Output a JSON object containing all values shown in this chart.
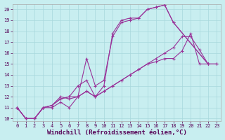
{
  "background_color": "#c8eef0",
  "grid_color": "#a8d8dc",
  "line_color": "#993399",
  "marker": "+",
  "marker_size": 3,
  "marker_lw": 0.8,
  "line_width": 0.8,
  "xlabel": "Windchill (Refroidissement éolien,°C)",
  "xlabel_fontsize": 6.5,
  "xlabel_fontweight": "bold",
  "xlabel_fontfamily": "monospace",
  "tick_fontsize": 5,
  "tick_fontfamily": "monospace",
  "xlim": [
    -0.5,
    23.5
  ],
  "ylim": [
    9.8,
    20.5
  ],
  "yticks": [
    10,
    11,
    12,
    13,
    14,
    15,
    16,
    17,
    18,
    19,
    20
  ],
  "xticks": [
    0,
    1,
    2,
    3,
    4,
    5,
    6,
    7,
    8,
    9,
    10,
    11,
    12,
    13,
    14,
    15,
    16,
    17,
    18,
    19,
    20,
    21,
    22,
    23
  ],
  "lines": [
    [
      [
        0,
        11
      ],
      [
        1,
        10
      ],
      [
        2,
        10
      ],
      [
        3,
        11
      ],
      [
        4,
        11
      ],
      [
        5,
        11.5
      ],
      [
        6,
        11
      ],
      [
        7,
        12
      ],
      [
        8,
        15.5
      ],
      [
        9,
        13
      ],
      [
        10,
        13.5
      ],
      [
        11,
        17.5
      ],
      [
        12,
        18.8
      ],
      [
        13,
        19
      ],
      [
        14,
        19.2
      ],
      [
        15,
        20
      ],
      [
        16,
        20.2
      ],
      [
        17,
        20.4
      ],
      [
        18,
        18.8
      ],
      [
        22,
        15
      ]
    ],
    [
      [
        0,
        11
      ],
      [
        1,
        10
      ],
      [
        2,
        10
      ],
      [
        3,
        11
      ],
      [
        4,
        11.2
      ],
      [
        5,
        11.8
      ],
      [
        6,
        12
      ],
      [
        7,
        13
      ],
      [
        8,
        13.5
      ],
      [
        9,
        12
      ],
      [
        10,
        13
      ],
      [
        11,
        17.8
      ],
      [
        12,
        19
      ],
      [
        13,
        19.2
      ],
      [
        14,
        19.2
      ],
      [
        15,
        20
      ],
      [
        16,
        20.2
      ],
      [
        17,
        20.4
      ],
      [
        18,
        18.8
      ],
      [
        22,
        15
      ]
    ],
    [
      [
        0,
        11
      ],
      [
        1,
        10
      ],
      [
        2,
        10
      ],
      [
        3,
        11
      ],
      [
        4,
        11.2
      ],
      [
        5,
        11.8
      ],
      [
        6,
        12
      ],
      [
        7,
        12
      ],
      [
        8,
        12.5
      ],
      [
        9,
        12
      ],
      [
        10,
        12.5
      ],
      [
        11,
        13
      ],
      [
        12,
        13.5
      ],
      [
        13,
        14
      ],
      [
        14,
        14.5
      ],
      [
        15,
        15
      ],
      [
        16,
        15.5
      ],
      [
        17,
        16
      ],
      [
        18,
        16.5
      ],
      [
        19,
        17.5
      ],
      [
        20,
        17.5
      ],
      [
        21,
        16.3
      ],
      [
        22,
        15
      ],
      [
        23,
        15
      ]
    ],
    [
      [
        0,
        11
      ],
      [
        1,
        10
      ],
      [
        2,
        10
      ],
      [
        3,
        11
      ],
      [
        4,
        11.2
      ],
      [
        5,
        12
      ],
      [
        6,
        11.8
      ],
      [
        7,
        12
      ],
      [
        8,
        12.5
      ],
      [
        9,
        12
      ],
      [
        10,
        12.5
      ],
      [
        11,
        13
      ],
      [
        12,
        13.5
      ],
      [
        13,
        14
      ],
      [
        14,
        14.5
      ],
      [
        15,
        15
      ],
      [
        16,
        15.2
      ],
      [
        17,
        15.5
      ],
      [
        18,
        15.5
      ],
      [
        19,
        16.2
      ],
      [
        20,
        17.8
      ],
      [
        21,
        15
      ],
      [
        22,
        15
      ],
      [
        23,
        15
      ]
    ]
  ]
}
